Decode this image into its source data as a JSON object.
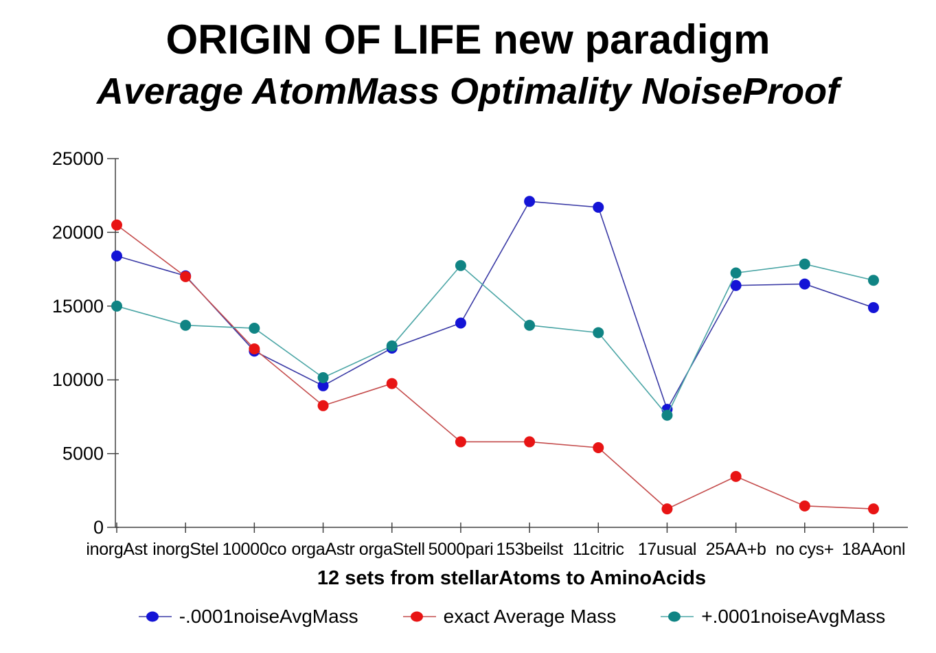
{
  "title": "ORIGIN OF LIFE new paradigm",
  "subtitle": "Average AtomMass Optimality NoiseProof",
  "colors": {
    "background": "#ffffff",
    "axis": "#404040",
    "text": "#000000"
  },
  "chart_data": {
    "type": "line",
    "title": "ORIGIN OF LIFE new paradigm",
    "subtitle": "Average AtomMass Optimality NoiseProof",
    "xlabel": "12 sets from stellarAtoms to AminoAcids",
    "ylabel": "",
    "ylim": [
      0,
      25000
    ],
    "yticks": [
      0,
      5000,
      10000,
      15000,
      20000,
      25000
    ],
    "grid": false,
    "legend_position": "bottom",
    "marker": "circle",
    "categories": [
      "inorgAst",
      "inorgStel",
      "10000co",
      "orgaAstr",
      "orgaStell",
      "5000pari",
      "153beilst",
      "11citric",
      "17usual",
      "25AA+b",
      "no cys+",
      "18AAonl"
    ],
    "series": [
      {
        "name": "-.0001noiseAvgMass",
        "line_color": "#3a3aa5",
        "dot_color": "#1414d6",
        "values": [
          18400,
          17050,
          11950,
          9600,
          12150,
          13850,
          22100,
          21700,
          8000,
          16400,
          16500,
          14900
        ]
      },
      {
        "name": "exact Average Mass",
        "line_color": "#c44b4b",
        "dot_color": "#e81414",
        "values": [
          20500,
          17000,
          12100,
          8250,
          9750,
          5800,
          5800,
          5400,
          1250,
          3450,
          1450,
          1250
        ]
      },
      {
        "name": "+.0001noiseAvgMass",
        "line_color": "#4aa5a5",
        "dot_color": "#108484",
        "values": [
          15000,
          13700,
          13500,
          10150,
          12300,
          17750,
          13700,
          13200,
          7600,
          17250,
          17850,
          16750
        ]
      }
    ]
  }
}
